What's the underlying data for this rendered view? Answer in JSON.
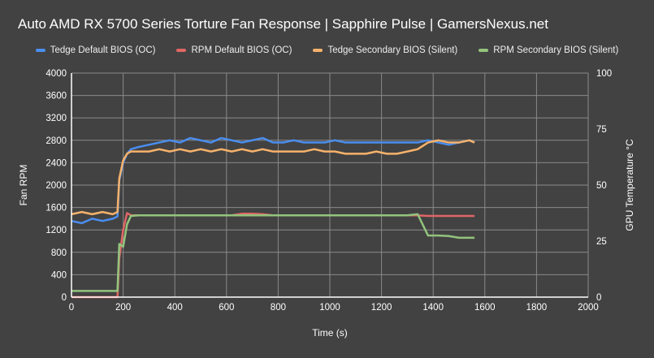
{
  "chart_data": {
    "type": "line",
    "title": "Auto AMD RX 5700 Series Torture Fan Response | Sapphire Pulse | GamersNexus.net",
    "xlabel": "Time (s)",
    "ylabel": "Fan RPM",
    "y2label": "GPU Temperature °C",
    "xlim": [
      0,
      2000
    ],
    "ylim": [
      0,
      4000
    ],
    "y2lim": [
      0,
      100
    ],
    "xticks": [
      0,
      200,
      400,
      600,
      800,
      1000,
      1200,
      1400,
      1600,
      1800,
      2000
    ],
    "yticks": [
      0,
      400,
      800,
      1200,
      1600,
      2000,
      2400,
      2800,
      3200,
      3600,
      4000
    ],
    "y2ticks": [
      0,
      25,
      50,
      75,
      100
    ],
    "grid": true,
    "legend": "top",
    "x": [
      0,
      40,
      80,
      120,
      160,
      178,
      185,
      200,
      215,
      230,
      260,
      300,
      340,
      380,
      420,
      460,
      500,
      540,
      580,
      620,
      660,
      700,
      740,
      780,
      820,
      860,
      900,
      940,
      980,
      1020,
      1060,
      1100,
      1140,
      1180,
      1220,
      1260,
      1300,
      1340,
      1380,
      1420,
      1460,
      1500,
      1540,
      1560
    ],
    "series": [
      {
        "name": "Tedge Default BIOS (OC)",
        "axis": "right",
        "color": "#4a8ef0",
        "values": [
          34,
          33,
          35,
          34,
          35,
          36,
          52,
          60,
          64,
          66,
          67,
          68,
          69,
          70,
          69,
          71,
          70,
          69,
          71,
          70,
          69,
          70,
          71,
          69,
          69,
          70,
          69,
          69,
          69,
          70,
          69,
          69,
          69,
          69,
          69,
          69,
          69,
          69,
          70,
          69,
          68,
          69,
          70,
          69
        ]
      },
      {
        "name": "RPM Default BIOS (OC)",
        "axis": "left",
        "color": "#e06666",
        "values": [
          0,
          0,
          0,
          0,
          0,
          0,
          700,
          1200,
          1500,
          1460,
          1460,
          1460,
          1460,
          1460,
          1460,
          1460,
          1460,
          1460,
          1460,
          1460,
          1490,
          1490,
          1480,
          1460,
          1460,
          1460,
          1460,
          1460,
          1460,
          1460,
          1460,
          1460,
          1460,
          1460,
          1460,
          1460,
          1460,
          1460,
          1450,
          1450,
          1450,
          1450,
          1450,
          1450
        ]
      },
      {
        "name": "Tedge Secondary BIOS (Silent)",
        "axis": "right",
        "color": "#f6b26b",
        "values": [
          37,
          38,
          37,
          38,
          37,
          38,
          53,
          61,
          64,
          65,
          65,
          65,
          66,
          65,
          66,
          65,
          66,
          65,
          66,
          65,
          66,
          65,
          66,
          65,
          65,
          65,
          65,
          66,
          65,
          65,
          64,
          64,
          64,
          65,
          64,
          64,
          65,
          66,
          69,
          70,
          69,
          69,
          70,
          69
        ]
      },
      {
        "name": "RPM Secondary BIOS (Silent)",
        "axis": "left",
        "color": "#93c47d",
        "values": [
          110,
          110,
          110,
          110,
          110,
          110,
          950,
          900,
          1300,
          1450,
          1460,
          1460,
          1460,
          1460,
          1460,
          1460,
          1460,
          1460,
          1460,
          1460,
          1460,
          1460,
          1460,
          1460,
          1460,
          1460,
          1460,
          1460,
          1460,
          1460,
          1460,
          1460,
          1460,
          1460,
          1460,
          1460,
          1460,
          1480,
          1100,
          1100,
          1090,
          1060,
          1060,
          1060
        ]
      }
    ]
  }
}
